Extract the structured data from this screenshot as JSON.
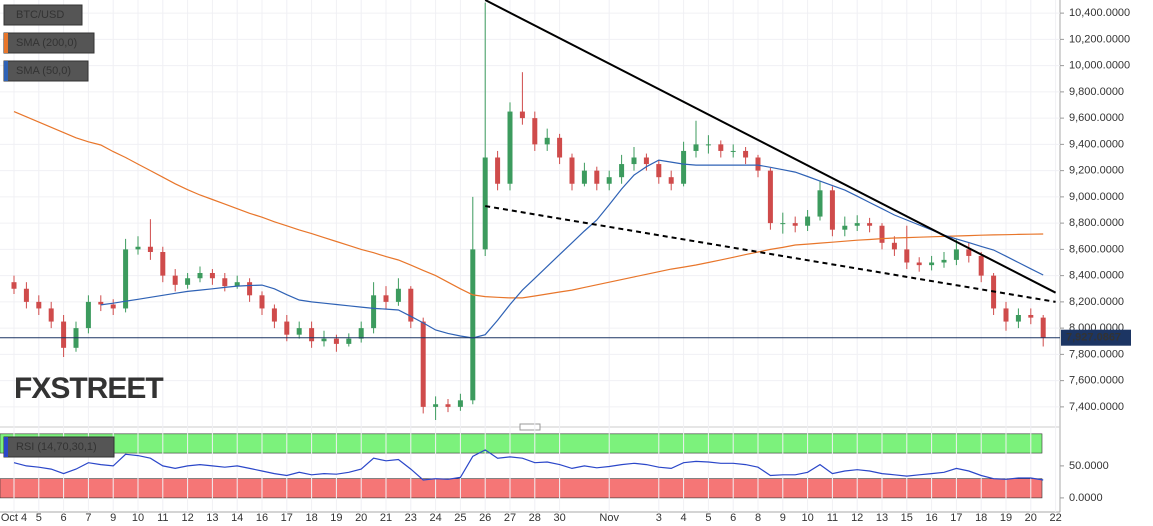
{
  "chart_data": [
    {
      "type": "candlestick",
      "categories": [
        "Oct 4",
        null,
        "5",
        null,
        "6",
        null,
        "7",
        null,
        "9",
        null,
        "10",
        null,
        "11",
        null,
        "12",
        null,
        "13",
        null,
        "14",
        null,
        "16",
        null,
        "17",
        null,
        "18",
        null,
        "19",
        null,
        "20",
        null,
        "21",
        null,
        "23",
        null,
        "24",
        null,
        "25",
        null,
        "26",
        null,
        "27",
        null,
        "28",
        null,
        "30",
        null,
        null,
        null,
        "Nov",
        null,
        null,
        null,
        "3",
        null,
        "4",
        null,
        "5",
        null,
        "6",
        null,
        "8",
        null,
        "9",
        null,
        "10",
        null,
        "11",
        null,
        "12",
        null,
        "13",
        null,
        "15",
        null,
        "16",
        null,
        "17",
        null,
        "18",
        null,
        "19",
        null,
        "20",
        null,
        "22"
      ],
      "series": [
        {
          "name": "BTC/USD",
          "type": "candlestick",
          "up_color": "#3c9b5e",
          "down_color": "#cf4b4b",
          "open": [
            8350,
            8300,
            8200,
            8150,
            8050,
            7850,
            8000,
            8200,
            8180,
            8150,
            8600,
            8620,
            8580,
            8400,
            8330,
            8380,
            8420,
            8380,
            8320,
            8350,
            8250,
            8150,
            8050,
            7950,
            8000,
            7900,
            7920,
            7880,
            7920,
            8000,
            8250,
            8200,
            8300,
            8050,
            7400,
            7420,
            7400,
            7450,
            8600,
            9300,
            9100,
            9650,
            9600,
            9400,
            9450,
            9300,
            9100,
            9200,
            9100,
            9150,
            9250,
            9300,
            9250,
            9150,
            9100,
            9350,
            9400,
            9400,
            9350,
            9350,
            9300,
            9200,
            8800,
            8800,
            8780,
            8850,
            9050,
            8750,
            8780,
            8800,
            8780,
            8650,
            8600,
            8500,
            8480,
            8500,
            8520,
            8600,
            8550,
            8400,
            8150,
            8050,
            8100,
            8080,
            null
          ],
          "high": [
            8400,
            8350,
            8250,
            8200,
            8100,
            8050,
            8250,
            8250,
            8220,
            8680,
            8700,
            8830,
            8620,
            8450,
            8420,
            8470,
            8450,
            8420,
            8400,
            8380,
            8280,
            8180,
            8100,
            8050,
            8050,
            7980,
            7950,
            7960,
            8050,
            8350,
            8320,
            8380,
            8320,
            8080,
            7480,
            7460,
            7500,
            9000,
            10480,
            9350,
            9720,
            9950,
            9650,
            9520,
            9480,
            9330,
            9260,
            9230,
            9200,
            9320,
            9380,
            9330,
            9280,
            9200,
            9420,
            9580,
            9470,
            9430,
            9400,
            9380,
            9320,
            9220,
            8880,
            8850,
            8900,
            9120,
            9080,
            8850,
            8860,
            8840,
            8800,
            8700,
            8780,
            8540,
            8550,
            8580,
            8680,
            8650,
            8580,
            8420,
            8200,
            8150,
            8150,
            8100,
            null
          ],
          "low": [
            8260,
            8150,
            8100,
            8000,
            7780,
            7820,
            7960,
            8130,
            8100,
            8120,
            8560,
            8520,
            8350,
            8280,
            8300,
            8350,
            8330,
            8280,
            8300,
            8200,
            8100,
            8000,
            7900,
            7920,
            7850,
            7860,
            7820,
            7860,
            7890,
            7960,
            8150,
            8170,
            8000,
            7350,
            7300,
            7360,
            7370,
            7420,
            8550,
            9050,
            9050,
            9550,
            9350,
            9350,
            9250,
            9050,
            9080,
            9050,
            9050,
            9100,
            9200,
            9200,
            9100,
            9050,
            9080,
            9300,
            9330,
            9300,
            9300,
            9250,
            9150,
            8750,
            8720,
            8730,
            8740,
            8820,
            8700,
            8700,
            8740,
            8730,
            8600,
            8550,
            8450,
            8430,
            8440,
            8460,
            8480,
            8500,
            8350,
            8100,
            7980,
            8000,
            8030,
            7860,
            null
          ],
          "close": [
            8300,
            8200,
            8150,
            8050,
            7850,
            8000,
            8200,
            8180,
            8150,
            8600,
            8620,
            8580,
            8400,
            8330,
            8380,
            8420,
            8380,
            8320,
            8350,
            8250,
            8150,
            8050,
            7950,
            8000,
            7900,
            7920,
            7880,
            7920,
            8000,
            8250,
            8200,
            8300,
            8050,
            7400,
            7420,
            7400,
            7450,
            8600,
            9300,
            9100,
            9650,
            9600,
            9400,
            9450,
            9300,
            9100,
            9200,
            9100,
            9150,
            9250,
            9300,
            9250,
            9150,
            9100,
            9350,
            9400,
            9400,
            9350,
            9350,
            9300,
            9200,
            8800,
            8800,
            8780,
            8850,
            9050,
            8750,
            8780,
            8800,
            8780,
            8650,
            8600,
            8500,
            8480,
            8500,
            8520,
            8600,
            8550,
            8400,
            8150,
            8050,
            8100,
            8080,
            7927.0867,
            null
          ]
        },
        {
          "name": "SMA (200,0)",
          "type": "line",
          "color": "#e8762b",
          "values": [
            9650,
            9610,
            9570,
            9530,
            9490,
            9450,
            9420,
            9395,
            9345,
            9300,
            9250,
            9200,
            9150,
            9100,
            9055,
            9014,
            8980,
            8945,
            8910,
            8875,
            8845,
            8810,
            8780,
            8748,
            8720,
            8690,
            8660,
            8630,
            8600,
            8575,
            8545,
            8519,
            8480,
            8440,
            8400,
            8350,
            8300,
            8253,
            8240,
            8235,
            8230,
            8230,
            8245,
            8260,
            8275,
            8290,
            8310,
            8330,
            8350,
            8370,
            8390,
            8410,
            8430,
            8450,
            8465,
            8481,
            8500,
            8520,
            8540,
            8560,
            8580,
            8600,
            8615,
            8633,
            8640,
            8648,
            8655,
            8662,
            8670,
            8675,
            8682,
            8687,
            8690,
            8693,
            8696,
            8699,
            8702,
            8705,
            8708,
            8710,
            8712,
            8714,
            8716,
            8717,
            null
          ]
        },
        {
          "name": "SMA (50,0)",
          "type": "line",
          "color": "#2f62b5",
          "values": [
            null,
            null,
            null,
            null,
            null,
            null,
            null,
            8177,
            8190,
            8205,
            8220,
            8235,
            8250,
            8265,
            8280,
            8290,
            8300,
            8310,
            8320,
            8325,
            8328,
            8300,
            8255,
            8214,
            8200,
            8190,
            8180,
            8170,
            8160,
            8150,
            8145,
            8138,
            8090,
            8040,
            7986,
            7960,
            7940,
            7925,
            7950,
            8060,
            8180,
            8290,
            8380,
            8470,
            8560,
            8650,
            8740,
            8824,
            8940,
            9060,
            9166,
            9230,
            9280,
            9265,
            9250,
            9242,
            9242,
            9242,
            9242,
            9242,
            9242,
            9225,
            9207,
            9189,
            9155,
            9120,
            9086,
            9052,
            9005,
            8957,
            8910,
            8862,
            8824,
            8786,
            8748,
            8709,
            8680,
            8652,
            8623,
            8595,
            8548,
            8500,
            8452,
            8405,
            null
          ]
        }
      ],
      "ylim": [
        7300,
        10500
      ],
      "yticks": [
        {
          "value": 7400,
          "label": "7,400.0000"
        },
        {
          "value": 7600,
          "label": "7,600.0000"
        },
        {
          "value": 7800,
          "label": "7,800.0000"
        },
        {
          "value": 8000,
          "label": "8,000.0000"
        },
        {
          "value": 8200,
          "label": "8,200.0000"
        },
        {
          "value": 8400,
          "label": "8,400.0000"
        },
        {
          "value": 8600,
          "label": "8,600.0000"
        },
        {
          "value": 8800,
          "label": "8,800.0000"
        },
        {
          "value": 9000,
          "label": "9,000.0000"
        },
        {
          "value": 9200,
          "label": "9,200.0000"
        },
        {
          "value": 9400,
          "label": "9,400.0000"
        },
        {
          "value": 9600,
          "label": "9,600.0000"
        },
        {
          "value": 9800,
          "label": "9,800.0000"
        },
        {
          "value": 10000,
          "label": "10,000.0000"
        },
        {
          "value": 10200,
          "label": "10,200.0000"
        },
        {
          "value": 10400,
          "label": "10,400.0000"
        }
      ],
      "last_price": {
        "value": 7927.0867,
        "label": "7,927.0867"
      },
      "trendlines": [
        {
          "style": "solid",
          "x": [
            38,
            84
          ],
          "y": [
            10500,
            8270
          ]
        },
        {
          "style": "dashed",
          "x": [
            38,
            84
          ],
          "y": [
            8930,
            8200
          ]
        }
      ],
      "watermark": "FXSTREET",
      "grid": true
    },
    {
      "type": "line",
      "series": [
        {
          "name": "RSI (14,70,30,1)",
          "color": "#2b47c9",
          "values": [
            55,
            50,
            48,
            45,
            38,
            45,
            55,
            52,
            50,
            68,
            66,
            62,
            50,
            46,
            50,
            52,
            50,
            48,
            50,
            46,
            42,
            38,
            35,
            40,
            36,
            38,
            37,
            40,
            45,
            62,
            58,
            60,
            45,
            28,
            30,
            29,
            32,
            65,
            75,
            62,
            64,
            62,
            55,
            56,
            52,
            46,
            50,
            47,
            49,
            52,
            54,
            52,
            48,
            46,
            55,
            57,
            56,
            54,
            54,
            52,
            48,
            35,
            36,
            36,
            40,
            52,
            38,
            42,
            44,
            42,
            38,
            36,
            34,
            36,
            38,
            40,
            46,
            42,
            35,
            30,
            29,
            31,
            31,
            28,
            null
          ]
        }
      ],
      "ylim": [
        -22,
        106
      ],
      "yticks": [
        {
          "value": 0,
          "label": "0.0000"
        },
        {
          "value": 50,
          "label": "50.0000"
        }
      ],
      "bands": [
        {
          "from": 70,
          "to": 100,
          "color": "#7cf27c"
        },
        {
          "from": 0,
          "to": 30,
          "color": "#f57676"
        }
      ]
    }
  ]
}
